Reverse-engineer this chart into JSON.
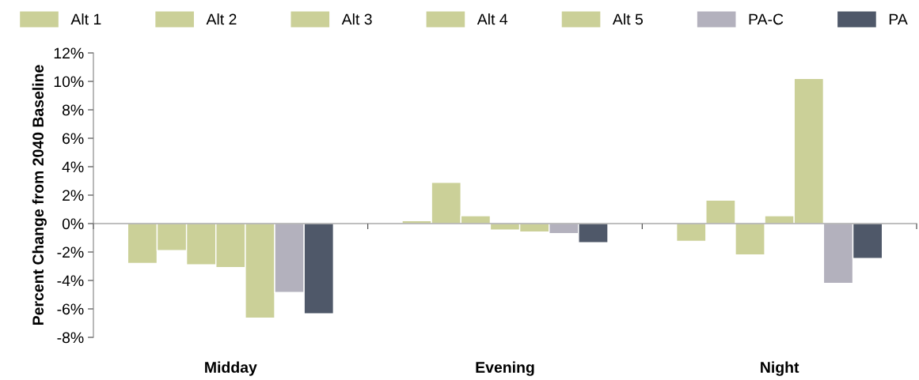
{
  "chart_data": {
    "type": "bar",
    "ylabel": "Percent Change from 2040 Baseline",
    "categories": [
      "Midday",
      "Evening",
      "Night"
    ],
    "series": [
      {
        "name": "Alt 1",
        "color": "#cbd098",
        "values": [
          -2.8,
          0.2,
          -1.25
        ]
      },
      {
        "name": "Alt 2",
        "color": "#cbd098",
        "values": [
          -1.9,
          2.9,
          1.65
        ]
      },
      {
        "name": "Alt 3",
        "color": "#cbd098",
        "values": [
          -2.9,
          0.55,
          -2.2
        ]
      },
      {
        "name": "Alt 4",
        "color": "#cbd098",
        "values": [
          -3.1,
          -0.45,
          0.55
        ]
      },
      {
        "name": "Alt 5",
        "color": "#cbd098",
        "values": [
          -6.65,
          -0.6,
          10.2
        ]
      },
      {
        "name": "PA-C",
        "color": "#b3b1bd",
        "values": [
          -4.85,
          -0.7,
          -4.2
        ]
      },
      {
        "name": "PA",
        "color": "#4f5869",
        "values": [
          -6.35,
          -1.35,
          -2.45
        ]
      }
    ],
    "ylim": [
      -8,
      12
    ],
    "yticks": [
      {
        "value": -8,
        "label": "-8%"
      },
      {
        "value": -6,
        "label": "-6%"
      },
      {
        "value": -4,
        "label": "-4%"
      },
      {
        "value": -2,
        "label": "-2%"
      },
      {
        "value": 0,
        "label": "0%"
      },
      {
        "value": 2,
        "label": "2%"
      },
      {
        "value": 4,
        "label": "4%"
      },
      {
        "value": 6,
        "label": "6%"
      },
      {
        "value": 8,
        "label": "8%"
      },
      {
        "value": 10,
        "label": "10%"
      },
      {
        "value": 12,
        "label": "12%"
      }
    ],
    "legend": "top"
  }
}
